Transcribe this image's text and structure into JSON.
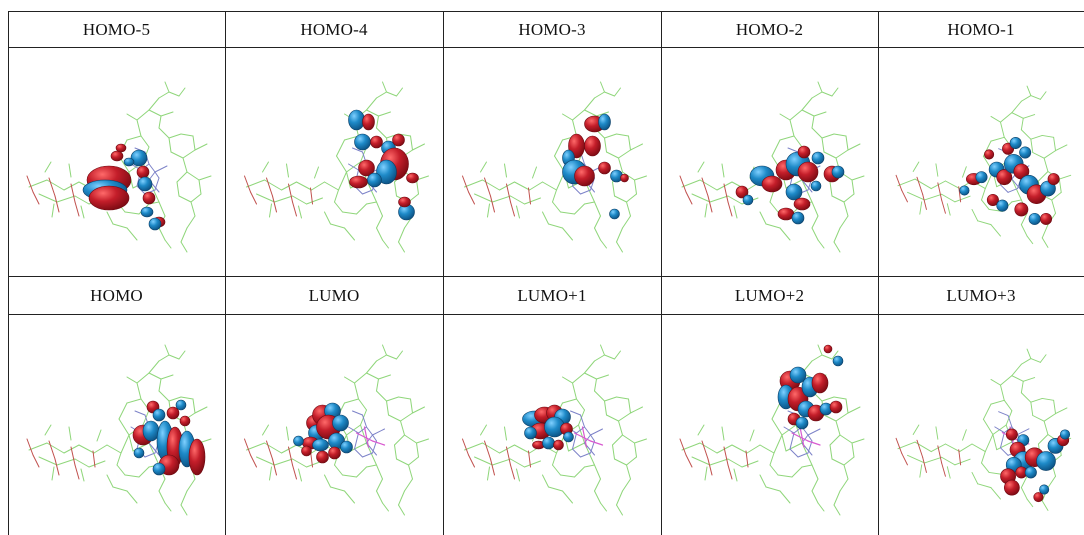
{
  "orbitals": {
    "row1": [
      "HOMO-5",
      "HOMO-4",
      "HOMO-3",
      "HOMO-2",
      "HOMO-1"
    ],
    "row2": [
      "HOMO",
      "LUMO",
      "LUMO+1",
      "LUMO+2",
      "LUMO+3"
    ]
  },
  "colors": {
    "positive_lobe": "#c41e2a",
    "negative_lobe": "#1e8ac8",
    "carbon_bond": "#8fd67a",
    "nitrogen_bond": "#7c82c8",
    "oxygen_bond": "#c0504d",
    "metal_bond": "#d85ad0"
  }
}
